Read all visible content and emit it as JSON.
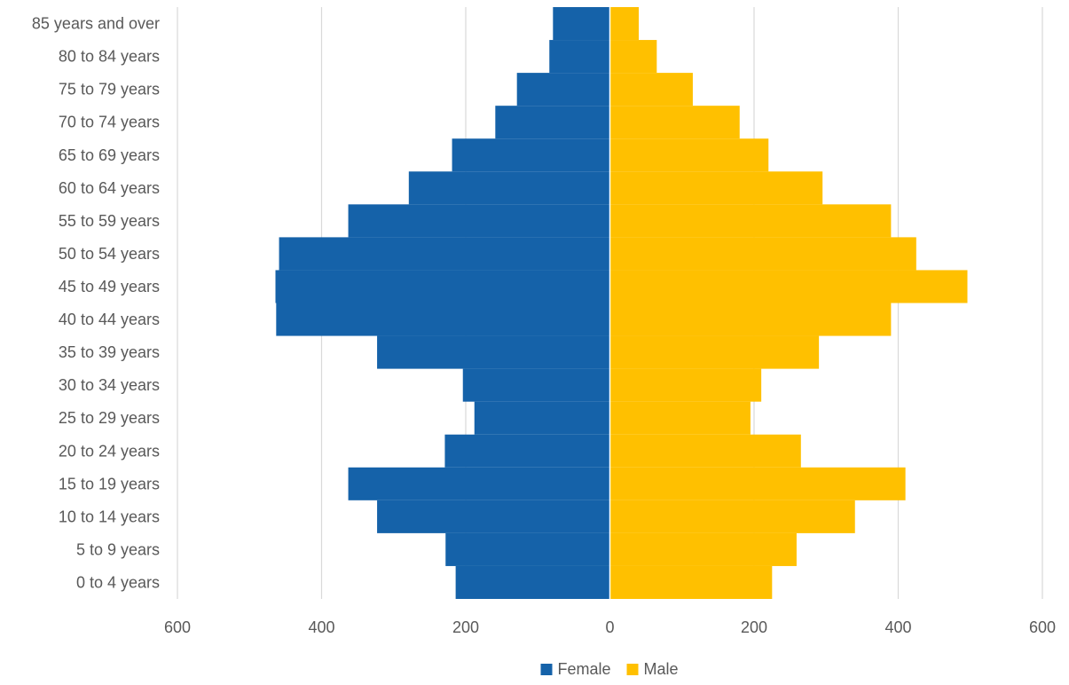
{
  "chart_data": {
    "type": "bar",
    "orientation": "horizontal",
    "layout": "population-pyramid",
    "categories": [
      "0 to 4 years",
      "5 to 9 years",
      "10 to 14 years",
      "15 to 19 years",
      "20 to 24 years",
      "25 to 29 years",
      "30 to 34 years",
      "35 to 39 years",
      "40 to 44 years",
      "45 to 49 years",
      "50 to 54 years",
      "55 to 59 years",
      "60 to 64 years",
      "65 to 69 years",
      "70 to 74 years",
      "75 to 79 years",
      "80 to 84 years",
      "85 years and over"
    ],
    "series": [
      {
        "name": "Female",
        "color": "#1562A9",
        "side": "left",
        "values": [
          214,
          228,
          323,
          363,
          229,
          188,
          204,
          323,
          463,
          464,
          459,
          363,
          279,
          219,
          159,
          129,
          84,
          79
        ]
      },
      {
        "name": "Male",
        "color": "#FFC000",
        "side": "right",
        "values": [
          225,
          259,
          340,
          410,
          265,
          195,
          210,
          290,
          390,
          496,
          425,
          390,
          295,
          220,
          180,
          115,
          65,
          40
        ]
      }
    ],
    "xlim": [
      -600,
      600
    ],
    "x_ticks": [
      -600,
      -400,
      -200,
      0,
      200,
      400,
      600
    ],
    "x_tick_labels": [
      "600",
      "400",
      "200",
      "0",
      "200",
      "400",
      "600"
    ],
    "grid": "vertical",
    "grid_color": "#D9D9D9",
    "legend": "bottom-center",
    "title": "",
    "xlabel": "",
    "ylabel": ""
  }
}
